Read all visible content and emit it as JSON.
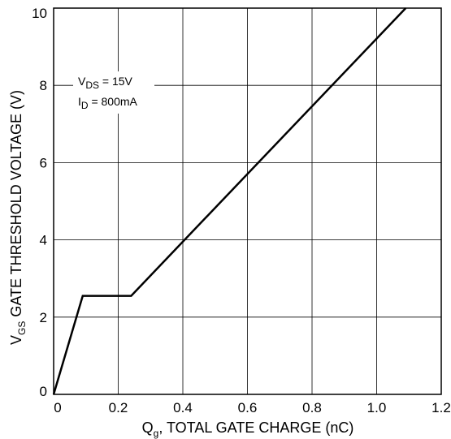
{
  "chart_data": {
    "type": "line",
    "title": "",
    "xlabel": {
      "main": "Q",
      "sub": "g",
      "rest": ", TOTAL GATE CHARGE  (nC)"
    },
    "ylabel": {
      "main": "V",
      "sub": "GS",
      "rest": " GATE THRESHOLD VOLTAGE (V)"
    },
    "xlim": [
      0,
      1.2
    ],
    "ylim": [
      0,
      10
    ],
    "x_ticks": [
      0,
      0.2,
      0.4,
      0.6,
      0.8,
      1.0,
      1.2
    ],
    "x_tick_labels": [
      "0",
      "0.2",
      "0.4",
      "0.6",
      "0.8",
      "1.0",
      "1.2"
    ],
    "y_ticks": [
      0,
      2,
      4,
      6,
      8,
      10
    ],
    "y_tick_labels": [
      "0",
      "2",
      "4",
      "6",
      "8",
      "10"
    ],
    "grid": true,
    "series": [
      {
        "x": [
          0,
          0.09,
          0.24,
          1.09
        ],
        "y": [
          0,
          2.55,
          2.55,
          10
        ]
      }
    ],
    "annotations": [
      {
        "main": "V",
        "sub": "DS",
        "rest": " = 15V"
      },
      {
        "main": "I",
        "sub": "D",
        "rest": " = 800mA"
      }
    ],
    "colors": {
      "line": "#000000",
      "grid": "#000000",
      "background": "#ffffff"
    }
  }
}
